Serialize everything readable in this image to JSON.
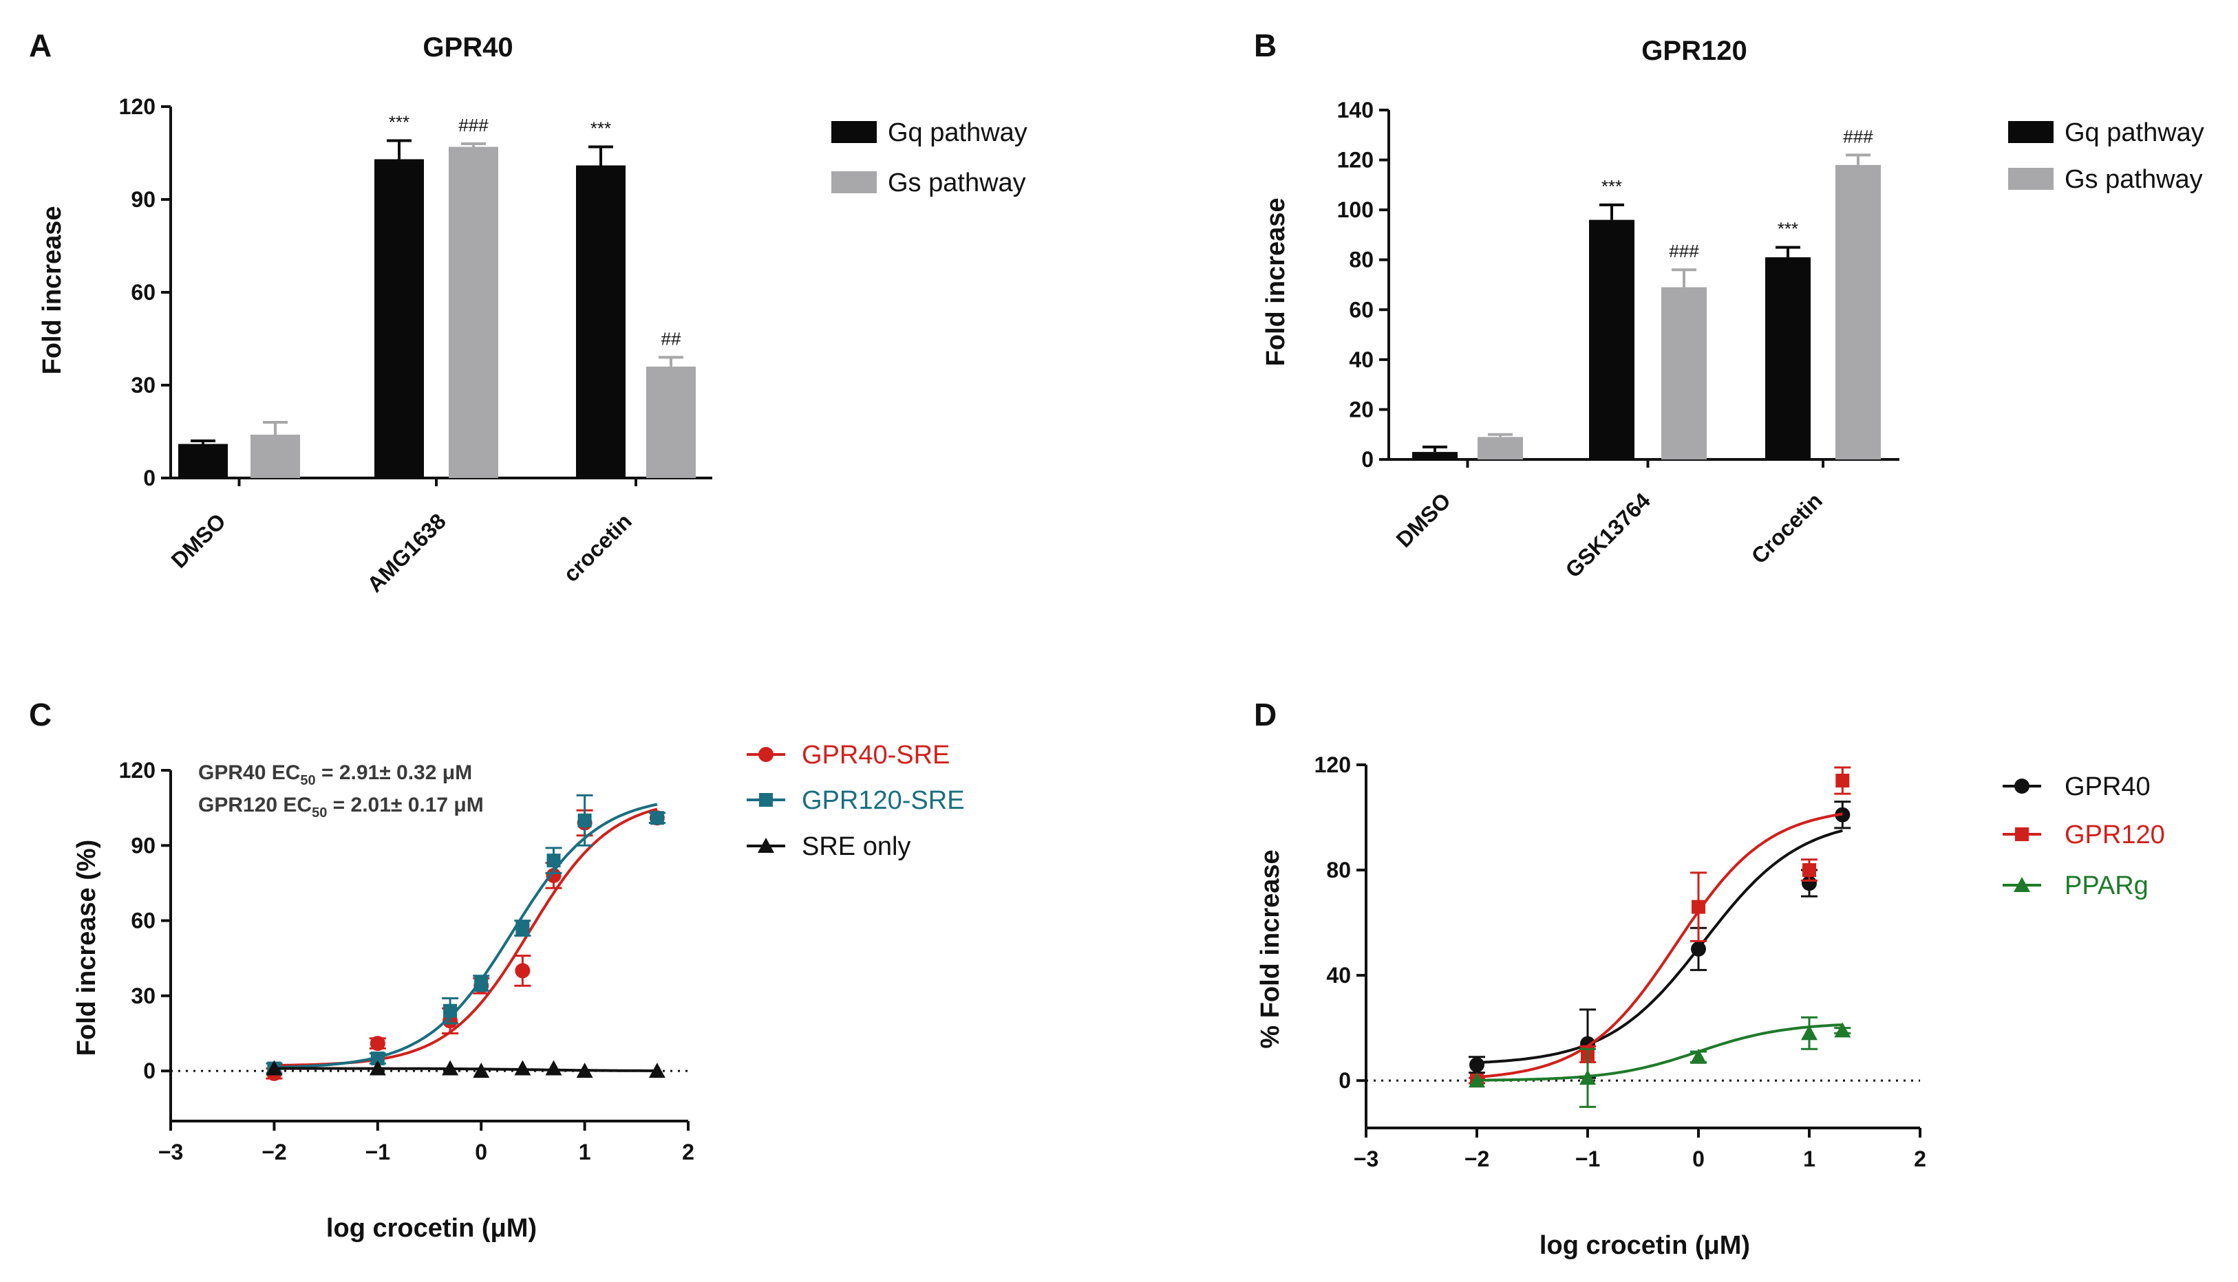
{
  "colors": {
    "gq": "#0a0a0a",
    "gs": "#a8a8aa",
    "gpr40_c": "#d0201c",
    "gpr120_c": "#1a6e80",
    "sre": "#111111",
    "gpr40_d": "#111111",
    "gpr120_d": "#d0201c",
    "pparg": "#1e7a2a"
  },
  "chart_data": [
    {
      "panel": "A",
      "type": "bar",
      "title": "GPR40",
      "ylabel": "Fold increase",
      "ylim": [
        0,
        120
      ],
      "yticks": [
        0,
        30,
        60,
        90,
        120
      ],
      "categories": [
        "DMSO",
        "AMG1638",
        "crocetin"
      ],
      "series": [
        {
          "name": "Gq pathway",
          "values": [
            11,
            103,
            101
          ],
          "errors": [
            1,
            6,
            6
          ],
          "annotations": [
            "",
            "***",
            "***"
          ]
        },
        {
          "name": "Gs pathway",
          "values": [
            14,
            107,
            36
          ],
          "errors": [
            4,
            1,
            3
          ],
          "annotations": [
            "",
            "###",
            "##"
          ]
        }
      ],
      "legend": "right"
    },
    {
      "panel": "B",
      "type": "bar",
      "title": "GPR120",
      "ylabel": "Fold increase",
      "ylim": [
        0,
        140
      ],
      "yticks": [
        0,
        20,
        40,
        60,
        80,
        100,
        120,
        140
      ],
      "categories": [
        "DMSO",
        "GSK13764",
        "Crocetin"
      ],
      "series": [
        {
          "name": "Gq pathway",
          "values": [
            3,
            96,
            81
          ],
          "errors": [
            2,
            6,
            4
          ],
          "annotations": [
            "",
            "***",
            "***"
          ]
        },
        {
          "name": "Gs pathway",
          "values": [
            9,
            69,
            118
          ],
          "errors": [
            1,
            7,
            4
          ],
          "annotations": [
            "",
            "###",
            "###"
          ]
        }
      ],
      "legend": "right"
    },
    {
      "panel": "C",
      "type": "scatter",
      "xlabel": "log crocetin (μM)",
      "ylabel": "Fold increase (%)",
      "xlim": [
        -3,
        2
      ],
      "xticks": [
        -3,
        -2,
        -1,
        0,
        1,
        2
      ],
      "ylim": [
        -20,
        120
      ],
      "yticks": [
        0,
        30,
        60,
        90,
        120
      ],
      "annotation_lines": [
        {
          "prefix": "GPR40 EC",
          "sub": "50",
          "suffix": " = 2.91± 0.32 μM"
        },
        {
          "prefix": "GPR120 EC",
          "sub": "50",
          "suffix": " = 2.01± 0.17 μM"
        }
      ],
      "series": [
        {
          "name": "GPR40-SRE",
          "marker": "circle",
          "x": [
            -2,
            -1,
            -0.3,
            0,
            0.4,
            0.7,
            1,
            1.7
          ],
          "y": [
            -1,
            11,
            20,
            34,
            40,
            78,
            99,
            101
          ],
          "err": [
            2,
            2,
            5,
            3,
            6,
            5,
            5,
            2
          ],
          "fit": {
            "bottom": 2,
            "top": 109,
            "logEC50": 0.464,
            "hill": 1.1
          }
        },
        {
          "name": "GPR120-SRE",
          "marker": "square",
          "x": [
            -2,
            -1,
            -0.3,
            0,
            0.4,
            0.7,
            1,
            1.7
          ],
          "y": [
            1,
            5,
            24,
            35,
            57,
            84,
            100,
            101
          ],
          "err": [
            2,
            2,
            5,
            3,
            3,
            5,
            10,
            2
          ],
          "fit": {
            "bottom": 1,
            "top": 110,
            "logEC50": 0.303,
            "hill": 1.05
          }
        },
        {
          "name": "SRE only",
          "marker": "triangle",
          "x": [
            -2,
            -1,
            -0.3,
            0,
            0.4,
            0.7,
            1,
            1.7
          ],
          "y": [
            1,
            1,
            1,
            0,
            1,
            1,
            0,
            0
          ],
          "err": [
            0,
            0,
            0,
            0,
            0,
            0,
            0,
            0
          ],
          "fit": {
            "bottom": 1,
            "top": 0,
            "logEC50": 0.5,
            "hill": 1
          }
        }
      ],
      "legend": "right"
    },
    {
      "panel": "D",
      "type": "scatter",
      "xlabel": "log crocetin (μM)",
      "ylabel": "% Fold increase",
      "xlim": [
        -3,
        2
      ],
      "xticks": [
        -3,
        -2,
        -1,
        0,
        1,
        2
      ],
      "ylim": [
        -18,
        120
      ],
      "yticks": [
        0,
        40,
        80,
        120
      ],
      "series": [
        {
          "name": "GPR40",
          "marker": "circle",
          "x": [
            -2,
            -1,
            0,
            1,
            1.3
          ],
          "y": [
            6,
            14,
            50,
            75,
            101
          ],
          "err": [
            3,
            13,
            8,
            5,
            5
          ],
          "fit": {
            "bottom": 6,
            "top": 100,
            "logEC50": 0.05,
            "hill": 1.0
          }
        },
        {
          "name": "GPR120",
          "marker": "square",
          "x": [
            -2,
            -1,
            0,
            1,
            1.3
          ],
          "y": [
            0,
            10,
            66,
            80,
            114
          ],
          "err": [
            1,
            3,
            13,
            4,
            5
          ],
          "fit": {
            "bottom": 0,
            "top": 104,
            "logEC50": -0.2,
            "hill": 1.05
          }
        },
        {
          "name": "PPARg",
          "marker": "triangle",
          "x": [
            -2,
            -1,
            0,
            1,
            1.3
          ],
          "y": [
            0,
            1,
            9,
            18,
            19
          ],
          "err": [
            0,
            11,
            2,
            6,
            1
          ],
          "fit": {
            "bottom": 0,
            "top": 22,
            "logEC50": 0.0,
            "hill": 1.1
          }
        }
      ],
      "legend": "right"
    }
  ]
}
